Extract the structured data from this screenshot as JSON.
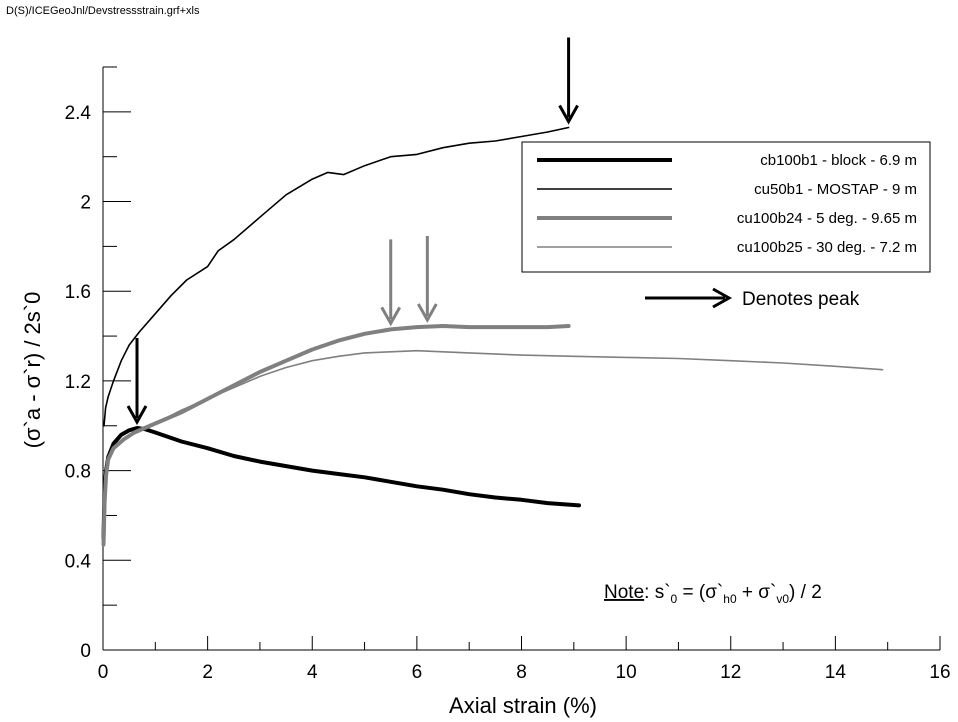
{
  "file_label": "D(S)/ICEGeoJnl/Devstressstrain.grf+xls",
  "chart_data": {
    "type": "line",
    "xlabel": "Axial strain (%)",
    "ylabel": "(σ`a - σ`r) / 2s`0",
    "xlim": [
      0,
      16
    ],
    "ylim": [
      0,
      2.6
    ],
    "x_ticks": [
      0,
      2,
      4,
      6,
      8,
      10,
      12,
      14,
      16
    ],
    "y_ticks": [
      0,
      0.4,
      0.8,
      1.2,
      1.6,
      2,
      2.4
    ],
    "x_tick_labels": [
      "0",
      "2",
      "4",
      "6",
      "8",
      "10",
      "12",
      "14",
      "16"
    ],
    "y_tick_labels": [
      "0",
      "0.4",
      "0.8",
      "1.2",
      "1.6",
      "2",
      "2.4"
    ],
    "grid": false,
    "legend_position": "top-right",
    "series": [
      {
        "name": "cb100b1 - block - 6.9 m",
        "color": "#000000",
        "style": "thick",
        "points": [
          [
            0.01,
            0.5
          ],
          [
            0.03,
            0.72
          ],
          [
            0.06,
            0.8
          ],
          [
            0.1,
            0.86
          ],
          [
            0.2,
            0.92
          ],
          [
            0.35,
            0.96
          ],
          [
            0.5,
            0.98
          ],
          [
            0.65,
            0.99
          ],
          [
            0.8,
            0.985
          ],
          [
            1.0,
            0.97
          ],
          [
            1.5,
            0.93
          ],
          [
            2,
            0.9
          ],
          [
            2.5,
            0.865
          ],
          [
            3,
            0.84
          ],
          [
            3.5,
            0.82
          ],
          [
            4,
            0.8
          ],
          [
            4.5,
            0.785
          ],
          [
            5,
            0.77
          ],
          [
            5.5,
            0.75
          ],
          [
            6,
            0.73
          ],
          [
            6.5,
            0.715
          ],
          [
            7,
            0.695
          ],
          [
            7.5,
            0.68
          ],
          [
            8,
            0.67
          ],
          [
            8.5,
            0.655
          ],
          [
            9.1,
            0.645
          ]
        ]
      },
      {
        "name": "cu50b1 - MOSTAP - 9 m",
        "color": "#000000",
        "style": "thin",
        "points": [
          [
            0.02,
            1.0
          ],
          [
            0.05,
            1.08
          ],
          [
            0.1,
            1.13
          ],
          [
            0.2,
            1.2
          ],
          [
            0.35,
            1.29
          ],
          [
            0.5,
            1.36
          ],
          [
            0.7,
            1.42
          ],
          [
            1.0,
            1.5
          ],
          [
            1.3,
            1.58
          ],
          [
            1.6,
            1.65
          ],
          [
            2,
            1.71
          ],
          [
            2.2,
            1.78
          ],
          [
            2.5,
            1.83
          ],
          [
            3,
            1.93
          ],
          [
            3.5,
            2.03
          ],
          [
            4,
            2.1
          ],
          [
            4.3,
            2.13
          ],
          [
            4.6,
            2.12
          ],
          [
            5,
            2.16
          ],
          [
            5.5,
            2.2
          ],
          [
            6,
            2.21
          ],
          [
            6.5,
            2.24
          ],
          [
            7,
            2.26
          ],
          [
            7.5,
            2.27
          ],
          [
            8,
            2.29
          ],
          [
            8.5,
            2.31
          ],
          [
            8.9,
            2.33
          ]
        ]
      },
      {
        "name": "cu100b24 - 5 deg. - 9.65 m",
        "color": "#808080",
        "style": "thick",
        "points": [
          [
            0.01,
            0.47
          ],
          [
            0.03,
            0.66
          ],
          [
            0.06,
            0.78
          ],
          [
            0.1,
            0.85
          ],
          [
            0.2,
            0.9
          ],
          [
            0.4,
            0.94
          ],
          [
            0.6,
            0.97
          ],
          [
            0.8,
            0.99
          ],
          [
            1.0,
            1.01
          ],
          [
            1.5,
            1.06
          ],
          [
            2,
            1.12
          ],
          [
            2.5,
            1.18
          ],
          [
            3,
            1.24
          ],
          [
            3.5,
            1.29
          ],
          [
            4,
            1.34
          ],
          [
            4.5,
            1.38
          ],
          [
            5,
            1.41
          ],
          [
            5.5,
            1.43
          ],
          [
            6,
            1.44
          ],
          [
            6.5,
            1.445
          ],
          [
            7,
            1.44
          ],
          [
            7.5,
            1.44
          ],
          [
            8,
            1.44
          ],
          [
            8.5,
            1.44
          ],
          [
            8.9,
            1.445
          ]
        ]
      },
      {
        "name": "cu100b25 - 30 deg. - 7.2 m",
        "color": "#808080",
        "style": "thin",
        "points": [
          [
            0.01,
            0.55
          ],
          [
            0.03,
            0.7
          ],
          [
            0.06,
            0.8
          ],
          [
            0.1,
            0.86
          ],
          [
            0.2,
            0.9
          ],
          [
            0.4,
            0.94
          ],
          [
            0.6,
            0.97
          ],
          [
            0.8,
            0.99
          ],
          [
            1.0,
            1.01
          ],
          [
            1.5,
            1.07
          ],
          [
            2,
            1.12
          ],
          [
            2.5,
            1.17
          ],
          [
            3,
            1.22
          ],
          [
            3.5,
            1.26
          ],
          [
            4,
            1.29
          ],
          [
            4.5,
            1.31
          ],
          [
            5,
            1.325
          ],
          [
            5.5,
            1.33
          ],
          [
            6,
            1.335
          ],
          [
            6.5,
            1.33
          ],
          [
            7,
            1.325
          ],
          [
            8,
            1.315
          ],
          [
            9,
            1.31
          ],
          [
            10,
            1.305
          ],
          [
            11,
            1.3
          ],
          [
            12,
            1.29
          ],
          [
            13,
            1.28
          ],
          [
            14,
            1.265
          ],
          [
            14.9,
            1.25
          ]
        ]
      }
    ],
    "peak_arrows": [
      {
        "x": 0.65,
        "y": 0.99,
        "color": "#000000"
      },
      {
        "x": 8.9,
        "y": 2.33,
        "color": "#000000"
      },
      {
        "x": 5.5,
        "y": 1.43,
        "color": "#808080"
      },
      {
        "x": 6.2,
        "y": 1.445,
        "color": "#808080"
      }
    ],
    "peak_legend_label": "Denotes peak",
    "note": {
      "label": "Note",
      "text_before": ": s`",
      "sub0": "0",
      "text_mid1": " = (σ`",
      "sub1": "h0",
      "text_mid2": " + σ`",
      "sub2": "v0",
      "text_end": ") / 2"
    }
  }
}
